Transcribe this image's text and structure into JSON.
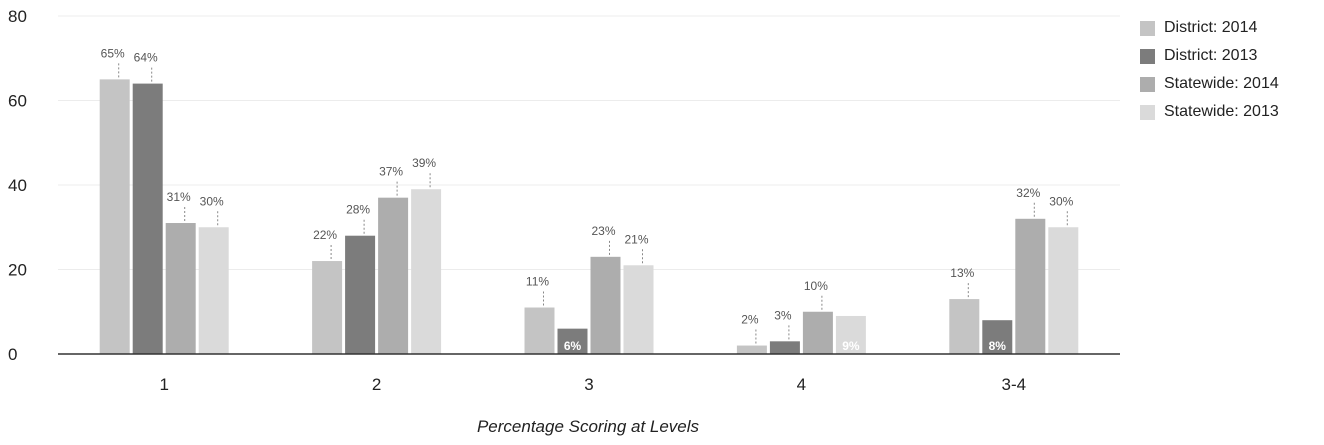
{
  "chart_data": {
    "type": "bar",
    "title": "",
    "xlabel": "Percentage Scoring at Levels",
    "ylabel": "",
    "ylim": [
      0,
      80
    ],
    "yticks": [
      0,
      20,
      40,
      60,
      80
    ],
    "categories": [
      "1",
      "2",
      "3",
      "4",
      "3-4"
    ],
    "series": [
      {
        "name": "District: 2014",
        "values": [
          65,
          22,
          11,
          2,
          13
        ],
        "labels": [
          "65%",
          "22%",
          "11%",
          "2%",
          "13%"
        ],
        "color": "#c4c4c4"
      },
      {
        "name": "District: 2013",
        "values": [
          64,
          28,
          6,
          3,
          8
        ],
        "labels": [
          "64%",
          "28%",
          "6%",
          "3%",
          "8%"
        ],
        "color": "#7c7c7c"
      },
      {
        "name": "Statewide: 2014",
        "values": [
          31,
          37,
          23,
          10,
          32
        ],
        "labels": [
          "31%",
          "37%",
          "23%",
          "10%",
          "32%"
        ],
        "color": "#adadad"
      },
      {
        "name": "Statewide: 2013",
        "values": [
          30,
          39,
          21,
          9,
          30
        ],
        "labels": [
          "30%",
          "39%",
          "21%",
          "9%",
          "30%"
        ],
        "color": "#dadada"
      }
    ],
    "grid": true,
    "legend_position": "right"
  }
}
